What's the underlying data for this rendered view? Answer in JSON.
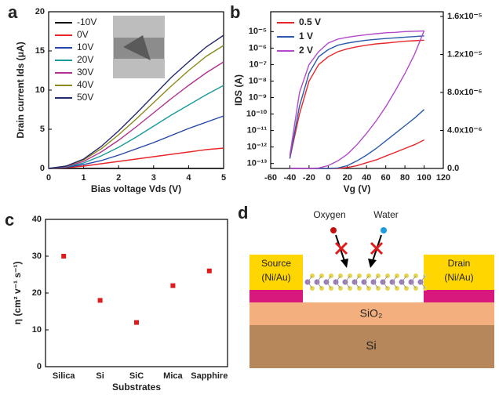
{
  "chart_data": [
    {
      "type": "line",
      "panel": "a",
      "x_label": "Bias voltage Vds (V)",
      "y_label": "Drain current Ids (μA)",
      "x": [
        0,
        0.5,
        1,
        1.5,
        2,
        2.5,
        3,
        3.5,
        4,
        4.5,
        5
      ],
      "xlim": [
        0,
        5
      ],
      "xticks": [
        0,
        1,
        2,
        3,
        4,
        5
      ],
      "ylim": [
        0,
        20
      ],
      "yticks": [
        0,
        5,
        10,
        15,
        20
      ],
      "legend": "top-left",
      "series": [
        {
          "name": "-10V",
          "color": "#000000",
          "values": [
            0,
            0,
            0,
            0,
            0,
            0,
            0,
            0,
            0,
            0,
            0
          ]
        },
        {
          "name": "0V",
          "color": "#e8262a",
          "values": [
            0,
            0.1,
            0.3,
            0.6,
            0.9,
            1.2,
            1.5,
            1.8,
            2.1,
            2.4,
            2.6
          ]
        },
        {
          "name": "10V",
          "color": "#2346a8",
          "values": [
            0,
            0.15,
            0.5,
            1.0,
            1.7,
            2.5,
            3.3,
            4.2,
            5.1,
            5.9,
            6.7
          ]
        },
        {
          "name": "20V",
          "color": "#1a9a9a",
          "values": [
            0,
            0.2,
            0.7,
            1.6,
            2.7,
            4.0,
            5.4,
            6.8,
            8.1,
            9.4,
            10.6
          ]
        },
        {
          "name": "30V",
          "color": "#b0318f",
          "values": [
            0,
            0.25,
            0.9,
            2.1,
            3.6,
            5.3,
            7.1,
            8.9,
            10.6,
            12.2,
            13.6
          ]
        },
        {
          "name": "40V",
          "color": "#8a8a1a",
          "values": [
            0,
            0.3,
            1.1,
            2.5,
            4.3,
            6.3,
            8.4,
            10.5,
            12.5,
            14.3,
            15.7
          ]
        },
        {
          "name": "50V",
          "color": "#232a6b",
          "values": [
            0,
            0.3,
            1.2,
            2.8,
            4.8,
            7.0,
            9.3,
            11.6,
            13.6,
            15.5,
            17.0
          ]
        }
      ]
    },
    {
      "type": "line",
      "panel": "b",
      "x_label": "Vg (V)",
      "y_label": "IDS (A)",
      "x": [
        -40,
        -30,
        -20,
        -10,
        0,
        10,
        20,
        30,
        40,
        50,
        60,
        70,
        80,
        90,
        100
      ],
      "xlim": [
        -60,
        120
      ],
      "xticks": [
        -60,
        -40,
        -20,
        0,
        20,
        40,
        60,
        80,
        100,
        120
      ],
      "ylog": true,
      "ylim": [
        5e-14,
        0.00016
      ],
      "yticks": [
        {
          "value": 1e-13,
          "label": "10⁻¹³"
        },
        {
          "value": 1e-12,
          "label": "10⁻¹²"
        },
        {
          "value": 1e-11,
          "label": "10⁻¹¹"
        },
        {
          "value": 1e-10,
          "label": "10⁻¹⁰"
        },
        {
          "value": 1e-09,
          "label": "10⁻⁹"
        },
        {
          "value": 1e-08,
          "label": "10⁻⁸"
        },
        {
          "value": 1e-07,
          "label": "10⁻⁷"
        },
        {
          "value": 1e-06,
          "label": "10⁻⁶"
        },
        {
          "value": 1e-05,
          "label": "10⁻⁵"
        }
      ],
      "y2lim": [
        0,
        1.65e-05
      ],
      "y2ticks": [
        {
          "value": 0,
          "label": "0.0"
        },
        {
          "value": 4e-06,
          "label": "4.0x10⁻⁶"
        },
        {
          "value": 8e-06,
          "label": "8.0x10⁻⁶"
        },
        {
          "value": 1.2e-05,
          "label": "1.2x10⁻⁵"
        },
        {
          "value": 1.6e-05,
          "label": "1.6x10⁻⁵"
        }
      ],
      "legend": "top-left",
      "series": [
        {
          "name": "0.5 V",
          "color": "#e8262a",
          "values": [
            2e-13,
            1e-10,
            1e-08,
            1e-07,
            3e-07,
            6e-07,
            9e-07,
            1.2e-06,
            1.5e-06,
            1.8e-06,
            2e-06,
            2.3e-06,
            2.6e-06,
            2.8e-06,
            3e-06
          ],
          "values_y2": [
            0,
            0,
            0,
            0,
            0,
            0,
            1e-07,
            3e-07,
            6e-07,
            9e-07,
            1.3e-06,
            1.7e-06,
            2.1e-06,
            2.5e-06,
            3e-06
          ]
        },
        {
          "name": "1 V",
          "color": "#2a5aa8",
          "values": [
            2e-13,
            3e-10,
            3e-08,
            3e-07,
            8e-07,
            1.5e-06,
            2e-06,
            2.5e-06,
            3e-06,
            3.4e-06,
            3.8e-06,
            4.2e-06,
            4.6e-06,
            5e-06,
            5.5e-06
          ],
          "values_y2": [
            0,
            0,
            0,
            0,
            0,
            5e-08,
            3e-07,
            8e-07,
            1.4e-06,
            2.1e-06,
            2.9e-06,
            3.7e-06,
            4.5e-06,
            5.3e-06,
            6.2e-06
          ]
        },
        {
          "name": "2 V",
          "color": "#b24ac9",
          "values": [
            3e-13,
            2e-09,
            1e-07,
            6e-07,
            2e-06,
            3.5e-06,
            4.5e-06,
            5.5e-06,
            6.5e-06,
            7.5e-06,
            8.5e-06,
            9e-06,
            1e-05,
            1.05e-05,
            1.1e-05
          ],
          "values_y2": [
            0,
            0,
            0,
            5e-08,
            3e-07,
            8e-07,
            1.5e-06,
            2.5e-06,
            3.7e-06,
            5e-06,
            6.5e-06,
            8.2e-06,
            1e-05,
            1.2e-05,
            1.45e-05
          ]
        }
      ]
    },
    {
      "type": "scatter",
      "panel": "c",
      "x_label": "Substrates",
      "y_label": "η (cm² v⁻¹ s⁻¹)",
      "categories": [
        "Silica",
        "Si",
        "SiC",
        "Mica",
        "Sapphire"
      ],
      "values": [
        30,
        18,
        12,
        22,
        26
      ],
      "color": "#e01b1b",
      "ylim": [
        0,
        40
      ],
      "yticks": [
        0,
        10,
        20,
        30,
        40
      ]
    }
  ],
  "diagram": {
    "panel": "d",
    "oxygen": "Oxygen",
    "water": "Water",
    "source": "Source",
    "source_metal": "(Ni/Au)",
    "drain": "Drain",
    "drain_metal": "(Ni/Au)",
    "oxide": "SiO₂",
    "substrate": "Si"
  }
}
